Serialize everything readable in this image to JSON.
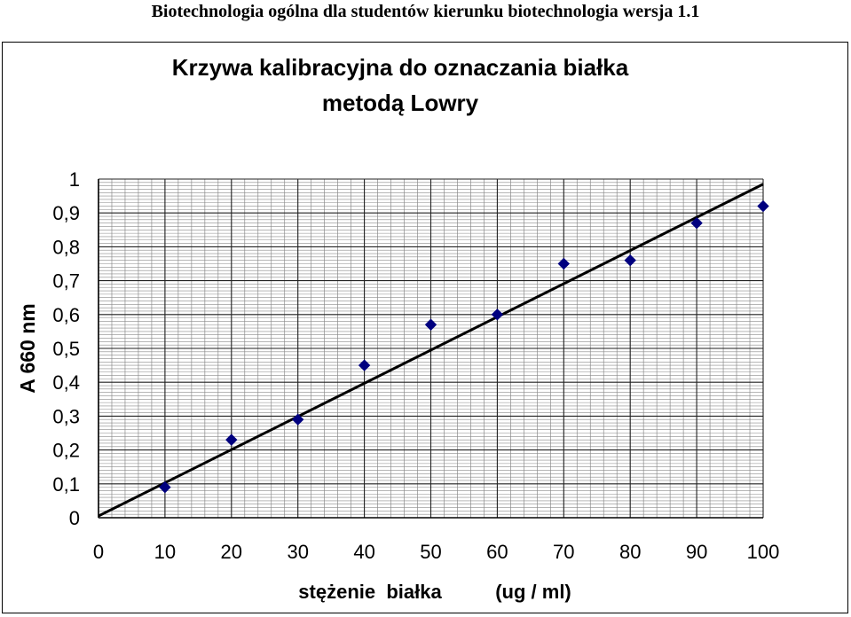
{
  "page_header": "Biotechnologia ogólna dla studentów kierunku biotechnologia wersja 1.1",
  "chart_data": {
    "type": "scatter",
    "title_line1": "Krzywa kalibracyjna do oznaczania białka",
    "title_line2": "metodą Lowry",
    "xlabel_part1": "stężenie  białka",
    "xlabel_part2": "(ug / ml)",
    "ylabel": "A 660 nm",
    "xlim": [
      0,
      100
    ],
    "ylim": [
      0,
      1
    ],
    "x_ticks": [
      "0",
      "10",
      "20",
      "30",
      "40",
      "50",
      "60",
      "70",
      "80",
      "90",
      "100"
    ],
    "y_ticks": [
      "0",
      "0,1",
      "0,2",
      "0,3",
      "0,4",
      "0,5",
      "0,6",
      "0,7",
      "0,8",
      "0,9",
      "1"
    ],
    "points": [
      {
        "x": 10,
        "y": 0.09
      },
      {
        "x": 20,
        "y": 0.23
      },
      {
        "x": 30,
        "y": 0.29
      },
      {
        "x": 40,
        "y": 0.45
      },
      {
        "x": 50,
        "y": 0.57
      },
      {
        "x": 60,
        "y": 0.6
      },
      {
        "x": 70,
        "y": 0.75
      },
      {
        "x": 80,
        "y": 0.76
      },
      {
        "x": 90,
        "y": 0.87
      },
      {
        "x": 100,
        "y": 0.92
      }
    ],
    "trendline": {
      "x0": 0,
      "y0": 0.005,
      "x1": 100,
      "y1": 0.985
    },
    "grid": true,
    "legend": "none",
    "marker_color": "#00007f",
    "line_color": "#000000"
  }
}
